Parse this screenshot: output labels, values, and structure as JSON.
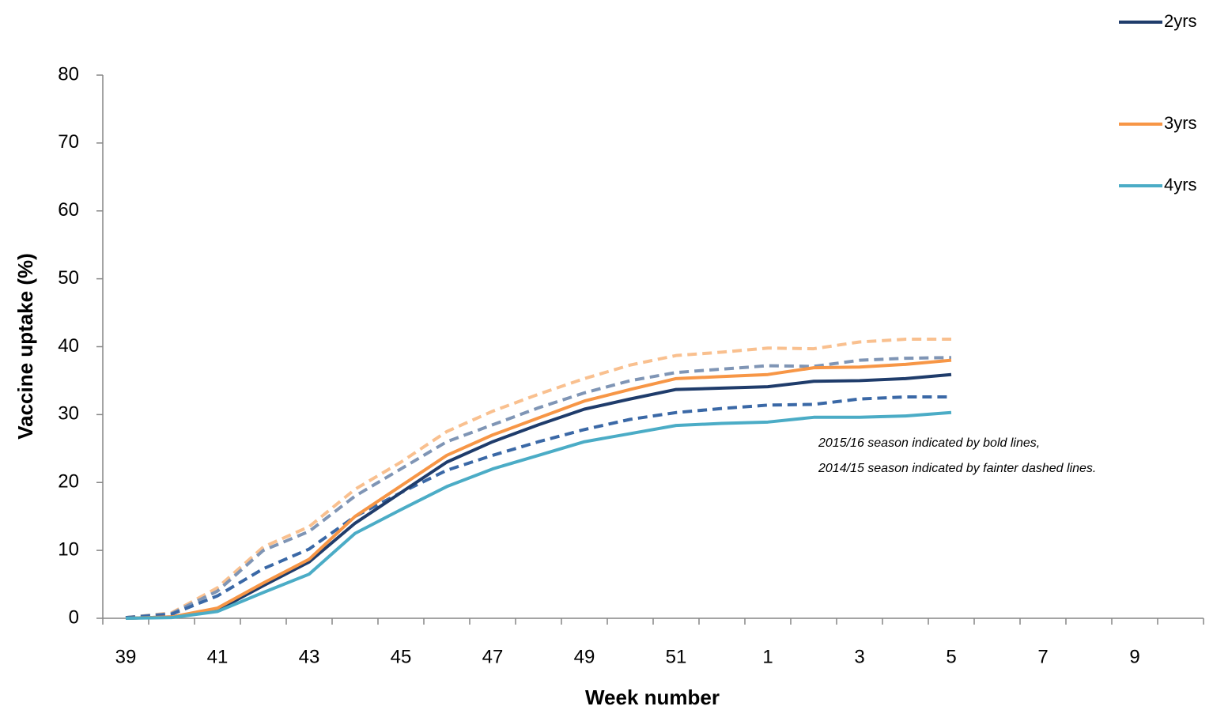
{
  "chart_data": {
    "type": "line",
    "x_label": "Week number",
    "y_label": "Vaccine uptake (%)",
    "annotation": [
      "2015/16 season indicated by bold lines,",
      "2014/15 season indicated by fainter dashed lines."
    ],
    "categories": [
      "39",
      null,
      "41",
      null,
      "43",
      null,
      "45",
      null,
      "47",
      null,
      "49",
      null,
      "51",
      null,
      "1",
      null,
      "3",
      null,
      "5",
      null,
      "7",
      null,
      "9",
      null
    ],
    "ylim": [
      0,
      80
    ],
    "yticks": [
      0,
      10,
      20,
      30,
      40,
      50,
      60,
      70,
      80
    ],
    "grid": false,
    "legend": "top-right",
    "series": [
      {
        "color": "#f9c08f",
        "dashed": true,
        "values": [
          0.1,
          0.8,
          4.5,
          10.5,
          13.5,
          19,
          23,
          27.5,
          30.5,
          33,
          35.3,
          37.3,
          38.7,
          39.2,
          39.8,
          39.7,
          40.7,
          41.1,
          41.1,
          null,
          null,
          null,
          null,
          null
        ]
      },
      {
        "color": "#7f95b5",
        "dashed": true,
        "values": [
          0.1,
          0.7,
          4,
          10,
          12.8,
          18,
          22,
          26,
          28.5,
          31,
          33.2,
          35,
          36.2,
          36.7,
          37.2,
          37.1,
          38,
          38.3,
          38.4,
          null,
          null,
          null,
          null,
          null
        ]
      },
      {
        "color": "#3a68a6",
        "dashed": true,
        "values": [
          0.1,
          0.6,
          3.3,
          7.3,
          10.2,
          15,
          18.5,
          21.8,
          24,
          26,
          27.8,
          29.3,
          30.3,
          30.9,
          31.4,
          31.5,
          32.3,
          32.6,
          32.6,
          null,
          null,
          null,
          null,
          null
        ]
      },
      {
        "name": "2yrs",
        "color": "#1f3c6b",
        "dashed": false,
        "values": [
          0,
          0.2,
          1.2,
          4.8,
          8.3,
          14,
          18.5,
          23,
          26,
          28.5,
          30.8,
          32.3,
          33.7,
          33.9,
          34.1,
          34.9,
          35,
          35.3,
          35.9,
          null,
          null,
          null,
          null,
          null
        ]
      },
      {
        "name": "3yrs",
        "color": "#f79646",
        "dashed": false,
        "values": [
          0,
          0.2,
          1.5,
          5.2,
          8.7,
          15,
          19.5,
          24,
          27,
          29.5,
          32,
          33.7,
          35.3,
          35.6,
          35.9,
          36.9,
          37,
          37.4,
          38,
          null,
          null,
          null,
          null,
          null
        ]
      },
      {
        "name": "4yrs",
        "color": "#4bacc6",
        "dashed": false,
        "values": [
          0,
          0.1,
          1,
          3.8,
          6.5,
          12.5,
          16,
          19.4,
          22,
          24,
          26,
          27.2,
          28.4,
          28.7,
          28.9,
          29.6,
          29.6,
          29.8,
          30.3,
          null,
          null,
          null,
          null,
          null
        ]
      }
    ]
  }
}
